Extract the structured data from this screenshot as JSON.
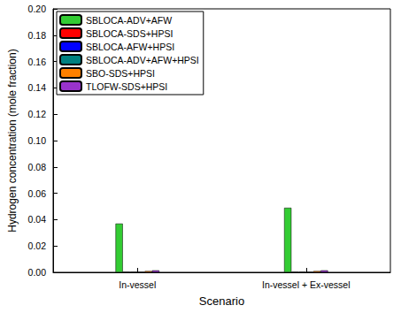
{
  "chart_data": {
    "type": "bar",
    "x_label": "Scenario",
    "y_label": "Hydrogen concentration (mole fraction)",
    "categories": [
      "In-vessel",
      "In-vessel + Ex-vessel"
    ],
    "series": [
      {
        "name": "SBLOCA-ADV+AFW",
        "color": "#33cc33",
        "values": [
          0.037,
          0.049
        ]
      },
      {
        "name": "SBLOCA-SDS+HPSI",
        "color": "#ff0000",
        "values": [
          0.0003,
          0.0003
        ]
      },
      {
        "name": "SBLOCA-AFW+HPSI",
        "color": "#0000ff",
        "values": [
          0.0003,
          0.0003
        ]
      },
      {
        "name": "SBLOCA-ADV+AFW+HPSI",
        "color": "#008080",
        "values": [
          0.0003,
          0.0003
        ]
      },
      {
        "name": "SBO-SDS+HPSI",
        "color": "#ff8000",
        "values": [
          0.001,
          0.001
        ]
      },
      {
        "name": "TLOFW-SDS+HPSI",
        "color": "#9933cc",
        "values": [
          0.0015,
          0.0015
        ]
      }
    ],
    "ylim": [
      0,
      0.2
    ],
    "yticks": [
      {
        "value": 0,
        "label": "0.00"
      },
      {
        "value": 0.02,
        "label": "0.02"
      },
      {
        "value": 0.04,
        "label": "0.04"
      },
      {
        "value": 0.06,
        "label": "0.06"
      },
      {
        "value": 0.08,
        "label": "0.08"
      },
      {
        "value": 0.1,
        "label": "0.10"
      },
      {
        "value": 0.12,
        "label": "0.12"
      },
      {
        "value": 0.14,
        "label": "0.14"
      },
      {
        "value": 0.16,
        "label": "0.16"
      },
      {
        "value": 0.18,
        "label": "0.18"
      },
      {
        "value": 0.2,
        "label": "0.20"
      }
    ],
    "grid": false,
    "legend": "upper left"
  }
}
